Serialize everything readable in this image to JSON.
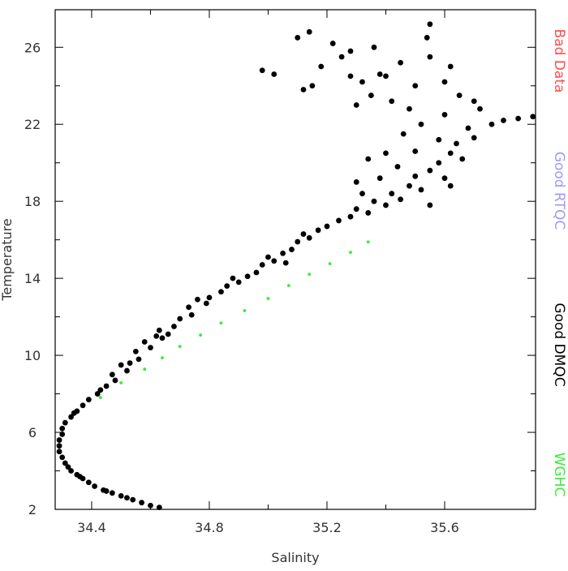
{
  "chart_data": {
    "type": "scatter",
    "x_label": "Salinity",
    "y_label": "Temperature",
    "xlim": [
      34.276,
      35.909
    ],
    "ylim": [
      2,
      27.95
    ],
    "xticks": [
      34.4,
      34.8,
      35.2,
      35.6
    ],
    "yticks": [
      2,
      6,
      10,
      14,
      18,
      22,
      26
    ],
    "series": [
      {
        "name": "Bad Data",
        "color": "#ff4d4d",
        "x": [],
        "y": []
      },
      {
        "name": "Good RTQC",
        "color": "#9a9aff",
        "x": [],
        "y": []
      },
      {
        "name": "Good DMQC",
        "color": "#000000",
        "x": [
          34.63,
          34.6,
          34.57,
          34.54,
          34.5,
          34.47,
          34.44,
          34.41,
          34.39,
          34.37,
          34.35,
          34.33,
          34.32,
          34.31,
          34.3,
          34.29,
          34.29,
          34.29,
          34.3,
          34.3,
          34.31,
          34.33,
          34.35,
          34.37,
          34.39,
          34.42,
          34.34,
          34.45,
          34.52,
          34.36,
          34.45,
          34.43,
          34.48,
          34.47,
          34.52,
          34.5,
          34.56,
          34.55,
          34.6,
          34.58,
          34.64,
          34.63,
          34.68,
          34.7,
          34.74,
          34.73,
          34.79,
          34.8,
          34.84,
          34.86,
          34.9,
          34.93,
          34.96,
          34.98,
          35.02,
          35.05,
          35.08,
          35.1,
          35.14,
          35.17,
          35.2,
          35.24,
          34.66,
          34.76,
          34.88,
          35.0,
          35.12,
          34.53,
          34.62,
          35.06,
          35.28,
          35.3,
          35.34,
          35.36,
          35.4,
          35.42,
          35.45,
          35.48,
          35.5,
          35.52,
          35.55,
          35.58,
          35.6,
          35.62,
          35.64,
          35.66,
          35.7,
          35.68,
          35.58,
          35.5,
          35.44,
          35.38,
          35.46,
          35.52,
          35.6,
          35.72,
          35.76,
          35.8,
          35.85,
          35.9,
          35.32,
          35.55,
          35.62,
          35.4,
          35.34,
          35.3,
          35.3,
          35.35,
          35.28,
          35.25,
          35.22,
          35.18,
          35.15,
          35.12,
          35.14,
          35.1,
          35.4,
          35.45,
          35.5,
          35.55,
          35.55,
          35.54,
          35.6,
          35.65,
          35.42,
          35.48,
          34.98,
          35.02,
          35.36,
          35.28,
          35.62,
          35.7,
          35.38,
          35.32
        ],
        "y": [
          2.1,
          2.2,
          2.35,
          2.5,
          2.7,
          2.85,
          3.0,
          3.2,
          3.4,
          3.6,
          3.8,
          4.0,
          4.2,
          4.4,
          4.7,
          5.0,
          5.3,
          5.6,
          5.9,
          6.2,
          6.5,
          6.8,
          7.1,
          7.4,
          7.7,
          8.0,
          7.0,
          2.95,
          2.6,
          3.7,
          8.4,
          8.2,
          8.7,
          9.0,
          9.2,
          9.5,
          9.8,
          10.2,
          10.4,
          10.7,
          10.9,
          11.3,
          11.5,
          11.9,
          12.1,
          12.5,
          12.7,
          13.0,
          13.3,
          13.6,
          13.8,
          14.1,
          14.3,
          14.7,
          14.9,
          15.3,
          15.5,
          15.9,
          16.1,
          16.5,
          16.7,
          17.0,
          11.1,
          12.9,
          14.0,
          15.1,
          16.3,
          9.6,
          11.0,
          14.8,
          17.2,
          17.6,
          17.4,
          18.0,
          17.8,
          18.4,
          18.1,
          18.8,
          19.3,
          18.6,
          19.6,
          20.0,
          19.2,
          20.5,
          21.0,
          20.2,
          21.3,
          21.8,
          21.2,
          20.6,
          19.8,
          19.2,
          21.5,
          22.0,
          22.5,
          22.8,
          22.0,
          22.2,
          22.3,
          22.4,
          18.4,
          17.8,
          18.8,
          20.5,
          20.2,
          19.0,
          23.0,
          23.5,
          24.5,
          25.5,
          26.2,
          25.0,
          24.0,
          23.8,
          26.8,
          26.5,
          24.5,
          25.2,
          24.0,
          25.5,
          27.2,
          26.5,
          24.2,
          23.5,
          23.2,
          22.8,
          24.8,
          24.6,
          26.0,
          25.8,
          25.0,
          23.2,
          24.6,
          24.2
        ]
      },
      {
        "name": "WGHC",
        "color": "#33ee33",
        "x": [
          34.43,
          34.5,
          34.58,
          34.64,
          34.7,
          34.77,
          34.84,
          34.92,
          35.0,
          35.07,
          35.14,
          35.21,
          35.28,
          35.34
        ],
        "y": [
          7.81,
          8.57,
          9.28,
          9.87,
          10.46,
          11.05,
          11.68,
          12.32,
          12.95,
          13.62,
          14.21,
          14.76,
          15.35,
          15.89
        ]
      }
    ]
  }
}
